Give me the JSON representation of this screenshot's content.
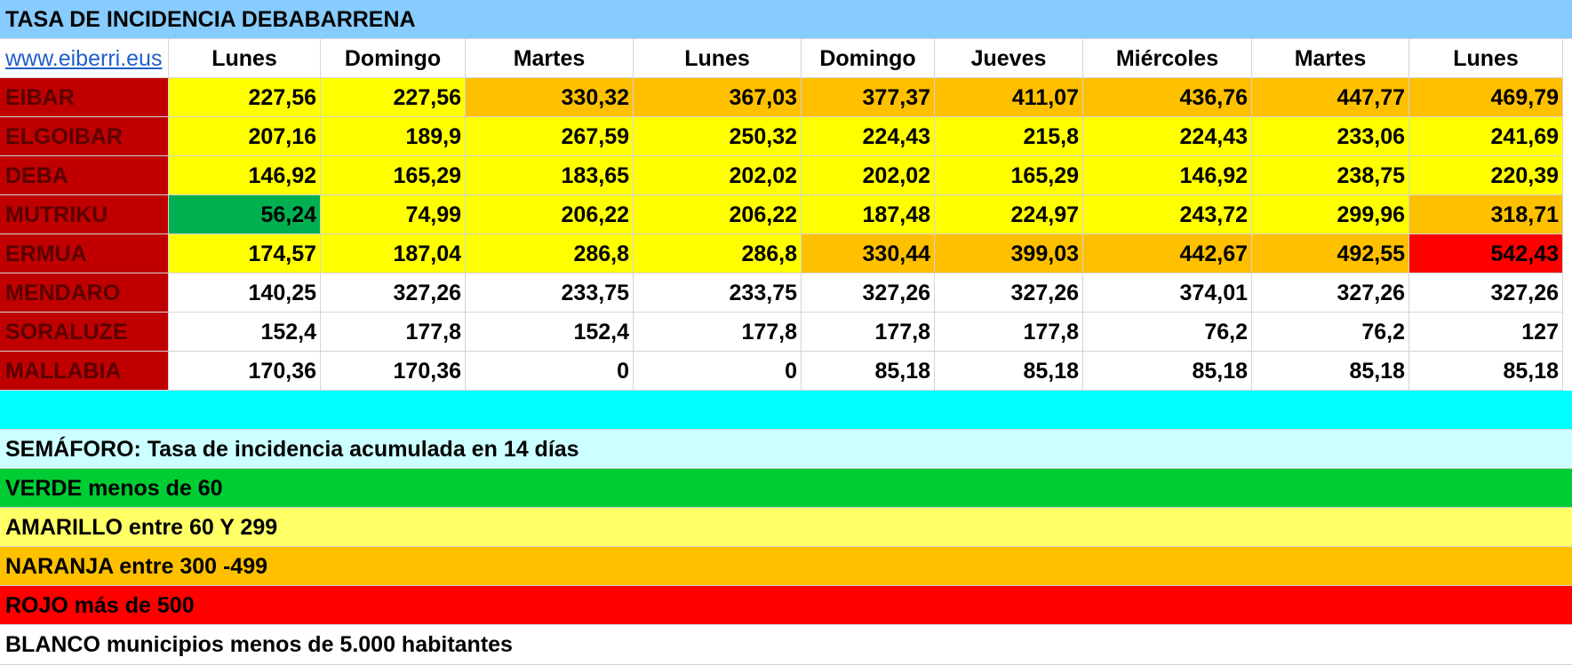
{
  "title": "TASA DE INCIDENCIA DEBABARRENA",
  "link_text": "www.eiberri.eus",
  "days": [
    "Lunes",
    "Domingo",
    "Martes",
    "Lunes",
    "Domingo",
    "Jueves",
    "Miércoles",
    "Martes",
    "Lunes"
  ],
  "municipalities": [
    {
      "name": "EIBAR",
      "values": [
        "227,56",
        "227,56",
        "330,32",
        "367,03",
        "377,37",
        "411,07",
        "436,76",
        "447,77",
        "469,79"
      ]
    },
    {
      "name": "ELGOIBAR",
      "values": [
        "207,16",
        "189,9",
        "267,59",
        "250,32",
        "224,43",
        "215,8",
        "224,43",
        "233,06",
        "241,69"
      ]
    },
    {
      "name": "DEBA",
      "values": [
        "146,92",
        "165,29",
        "183,65",
        "202,02",
        "202,02",
        "165,29",
        "146,92",
        "238,75",
        "220,39"
      ]
    },
    {
      "name": "MUTRIKU",
      "values": [
        "56,24",
        "74,99",
        "206,22",
        "206,22",
        "187,48",
        "224,97",
        "243,72",
        "299,96",
        "318,71"
      ]
    },
    {
      "name": "ERMUA",
      "values": [
        "174,57",
        "187,04",
        "286,8",
        "286,8",
        "330,44",
        "399,03",
        "442,67",
        "492,55",
        "542,43"
      ]
    },
    {
      "name": "MENDARO",
      "values": [
        "140,25",
        "327,26",
        "233,75",
        "233,75",
        "327,26",
        "327,26",
        "374,01",
        "327,26",
        "327,26"
      ]
    },
    {
      "name": "SORALUZE",
      "values": [
        "152,4",
        "177,8",
        "152,4",
        "177,8",
        "177,8",
        "177,8",
        "76,2",
        "76,2",
        "127"
      ]
    },
    {
      "name": "MALLABIA",
      "values": [
        "170,36",
        "170,36",
        "0",
        "0",
        "85,18",
        "85,18",
        "85,18",
        "85,18",
        "85,18"
      ]
    }
  ],
  "cell_colors": [
    [
      "yellow",
      "yellow",
      "orange",
      "orange",
      "orange",
      "orange",
      "orange",
      "orange",
      "orange"
    ],
    [
      "yellow",
      "yellow",
      "yellow",
      "yellow",
      "yellow",
      "yellow",
      "yellow",
      "yellow",
      "yellow"
    ],
    [
      "yellow",
      "yellow",
      "yellow",
      "yellow",
      "yellow",
      "yellow",
      "yellow",
      "yellow",
      "yellow"
    ],
    [
      "green",
      "yellow",
      "yellow",
      "yellow",
      "yellow",
      "yellow",
      "yellow",
      "yellow",
      "orange"
    ],
    [
      "yellow",
      "yellow",
      "yellow",
      "yellow",
      "orange",
      "orange",
      "orange",
      "orange",
      "red"
    ],
    [
      "white",
      "white",
      "white",
      "white",
      "white",
      "white",
      "white",
      "white",
      "white"
    ],
    [
      "white",
      "white",
      "white",
      "white",
      "white",
      "white",
      "white",
      "white",
      "white"
    ],
    [
      "white",
      "white",
      "white",
      "white",
      "white",
      "white",
      "white",
      "white",
      "white"
    ]
  ],
  "colors": {
    "title_bar": "#87ccff",
    "name_cell": "#c00000",
    "yellow": "#ffff00",
    "orange": "#ffc000",
    "green": "#00b050",
    "red": "#ff0000",
    "cyan_band": "#00ffff"
  },
  "legend": {
    "header": "SEMÁFORO:  Tasa de incidencia acumulada en 14 días",
    "green": "VERDE menos de 60",
    "yellow": "AMARILLO entre 60 Y 299",
    "orange": "NARANJA entre 300 -499",
    "red": "ROJO más de 500",
    "white": "BLANCO municipios menos de 5.000 habitantes"
  }
}
